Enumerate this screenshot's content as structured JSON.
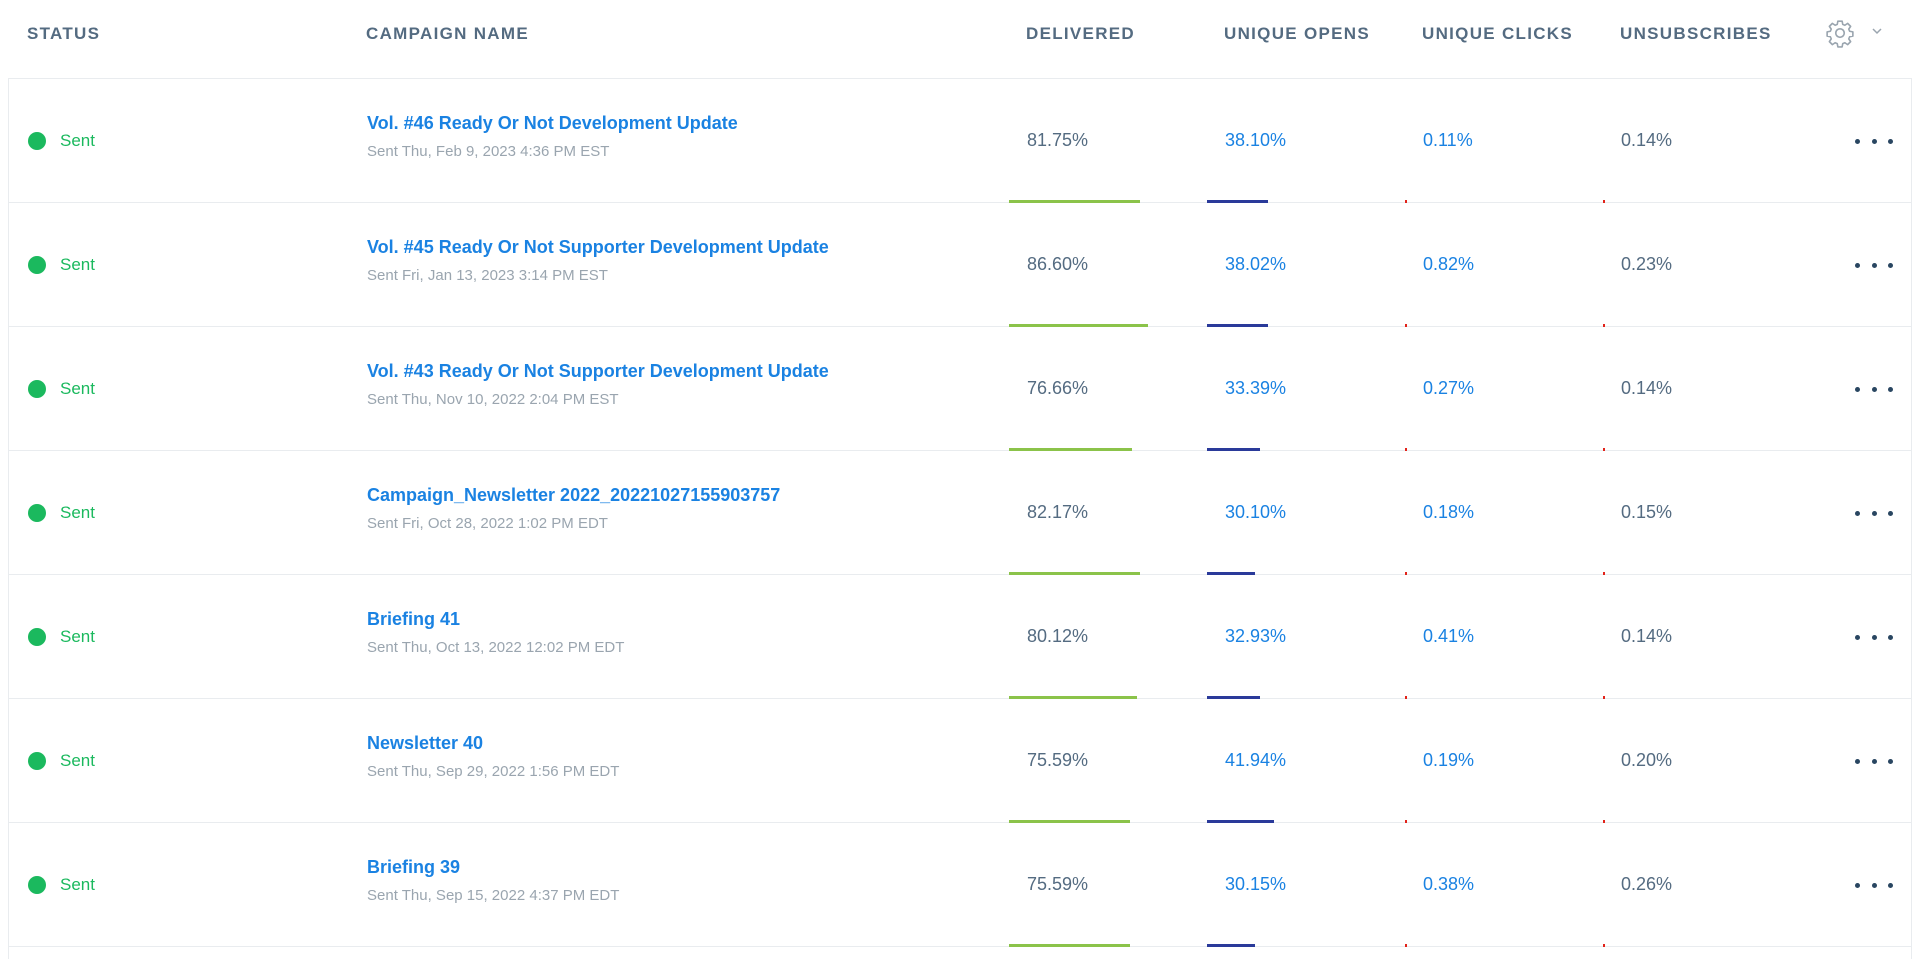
{
  "header": {
    "status": "STATUS",
    "campaign_name": "CAMPAIGN NAME",
    "delivered": "DELIVERED",
    "unique_opens": "UNIQUE OPENS",
    "unique_clicks": "UNIQUE CLICKS",
    "unsubscribes": "UNSUBSCRIBES",
    "settings_icon": "gear-icon",
    "settings_chevron": "chevron-down-icon"
  },
  "colors": {
    "sent": "#1bb95e",
    "link": "#1a82e2",
    "delivered_bar": "#8bc34a",
    "opens_bar": "#2a3a9a",
    "error_bar": "#e2231a"
  },
  "rows": [
    {
      "status": "Sent",
      "name": "Vol. #46 Ready Or Not Development Update",
      "date": "Sent Thu, Feb 9, 2023 4:36 PM EST",
      "delivered": "81.75%",
      "delivered_val": 81.75,
      "opens": "38.10%",
      "opens_val": 38.1,
      "clicks": "0.11%",
      "clicks_val": 0.11,
      "unsubs": "0.14%",
      "unsubs_val": 0.14
    },
    {
      "status": "Sent",
      "name": "Vol. #45 Ready Or Not Supporter Development Update",
      "date": "Sent Fri, Jan 13, 2023 3:14 PM EST",
      "delivered": "86.60%",
      "delivered_val": 86.6,
      "opens": "38.02%",
      "opens_val": 38.02,
      "clicks": "0.82%",
      "clicks_val": 0.82,
      "unsubs": "0.23%",
      "unsubs_val": 0.23
    },
    {
      "status": "Sent",
      "name": "Vol. #43 Ready Or Not Supporter Development Update",
      "date": "Sent Thu, Nov 10, 2022 2:04 PM EST",
      "delivered": "76.66%",
      "delivered_val": 76.66,
      "opens": "33.39%",
      "opens_val": 33.39,
      "clicks": "0.27%",
      "clicks_val": 0.27,
      "unsubs": "0.14%",
      "unsubs_val": 0.14
    },
    {
      "status": "Sent",
      "name": "Campaign_Newsletter 2022_20221027155903757",
      "date": "Sent Fri, Oct 28, 2022 1:02 PM EDT",
      "delivered": "82.17%",
      "delivered_val": 82.17,
      "opens": "30.10%",
      "opens_val": 30.1,
      "clicks": "0.18%",
      "clicks_val": 0.18,
      "unsubs": "0.15%",
      "unsubs_val": 0.15
    },
    {
      "status": "Sent",
      "name": "Briefing 41",
      "date": "Sent Thu, Oct 13, 2022 12:02 PM EDT",
      "delivered": "80.12%",
      "delivered_val": 80.12,
      "opens": "32.93%",
      "opens_val": 32.93,
      "clicks": "0.41%",
      "clicks_val": 0.41,
      "unsubs": "0.14%",
      "unsubs_val": 0.14
    },
    {
      "status": "Sent",
      "name": "Newsletter 40",
      "date": "Sent Thu, Sep 29, 2022 1:56 PM EDT",
      "delivered": "75.59%",
      "delivered_val": 75.59,
      "opens": "41.94%",
      "opens_val": 41.94,
      "clicks": "0.19%",
      "clicks_val": 0.19,
      "unsubs": "0.20%",
      "unsubs_val": 0.2
    },
    {
      "status": "Sent",
      "name": "Briefing 39",
      "date": "Sent Thu, Sep 15, 2022 4:37 PM EDT",
      "delivered": "75.59%",
      "delivered_val": 75.59,
      "opens": "30.15%",
      "opens_val": 30.15,
      "clicks": "0.38%",
      "clicks_val": 0.38,
      "unsubs": "0.26%",
      "unsubs_val": 0.26
    }
  ]
}
